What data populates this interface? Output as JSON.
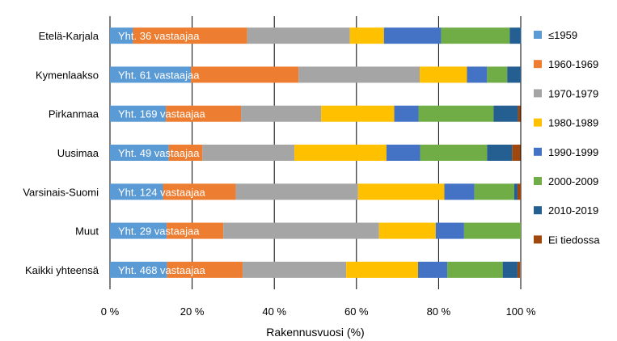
{
  "chart_data": {
    "type": "bar",
    "orientation": "horizontal",
    "stacked": true,
    "categories": [
      "Etelä-Karjala",
      "Kymenlaakso",
      "Pirkanmaa",
      "Uusimaa",
      "Varsinais-Suomi",
      "Muut",
      "Kaikki yhteensä"
    ],
    "bar_annotations": [
      "Yht. 36 vastaajaa",
      "Yht. 61 vastaajaa",
      "Yht. 169 vastaajaa",
      "Yht. 49 vastaajaa",
      "Yht. 124 vastaajaa",
      "Yht. 29 vastaajaa",
      "Yht. 468 vastaajaa"
    ],
    "series": [
      {
        "name": "≤1959",
        "color": "#5B9BD5",
        "values": [
          5.6,
          19.7,
          13.6,
          14.3,
          12.9,
          13.8,
          13.9
        ]
      },
      {
        "name": "1960-1969",
        "color": "#ED7D31",
        "values": [
          27.8,
          26.2,
          18.3,
          8.2,
          17.7,
          13.8,
          18.4
        ]
      },
      {
        "name": "1970-1979",
        "color": "#A5A5A5",
        "values": [
          25.0,
          29.5,
          19.5,
          22.4,
          29.8,
          37.9,
          25.2
        ]
      },
      {
        "name": "1980-1989",
        "color": "#FFC000",
        "values": [
          8.3,
          11.5,
          17.8,
          22.4,
          21.0,
          13.8,
          17.5
        ]
      },
      {
        "name": "1990-1999",
        "color": "#4472C4",
        "values": [
          13.9,
          4.9,
          5.9,
          8.2,
          7.3,
          6.9,
          7.1
        ]
      },
      {
        "name": "2000-2009",
        "color": "#70AD47",
        "values": [
          16.7,
          4.9,
          18.3,
          16.3,
          9.7,
          13.8,
          13.5
        ]
      },
      {
        "name": "2010-2019",
        "color": "#255E91",
        "values": [
          2.8,
          3.3,
          5.9,
          6.1,
          0.8,
          0.0,
          3.6
        ]
      },
      {
        "name": "Ei tiedossa",
        "color": "#9E480E",
        "values": [
          0.0,
          0.0,
          0.6,
          2.0,
          0.8,
          0.0,
          0.6
        ]
      }
    ],
    "xlabel": "Rakennusvuosi (%)",
    "xlim": [
      0,
      100
    ],
    "xticks": [
      "0 %",
      "20 %",
      "40 %",
      "60 %",
      "80 %",
      "100 %"
    ],
    "grid": true,
    "legend_position": "right"
  }
}
